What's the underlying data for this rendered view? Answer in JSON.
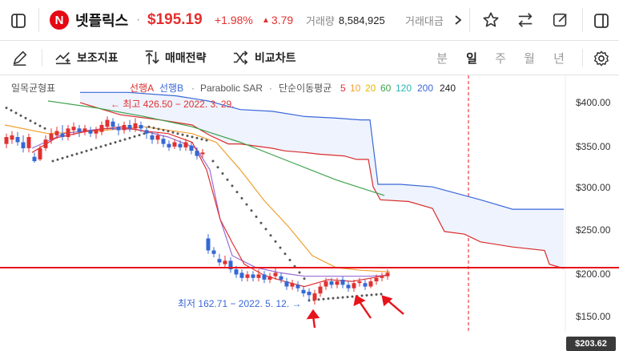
{
  "header": {
    "stock_name": "넷플릭스",
    "separator": "·",
    "price": "$195.19",
    "change_pct": "+1.98%",
    "change_abs": "3.79",
    "volume_label": "거래량",
    "volume_value": "8,584,925",
    "trade_amount_label": "거래대금",
    "colors": {
      "up": "#e52f2f",
      "brand": "#e50914"
    },
    "icons": [
      "sidebar-left-icon",
      "netflix-logo",
      "chevron-right-icon",
      "star-icon",
      "swap-icon",
      "edit-icon",
      "sidebar-right-icon"
    ]
  },
  "toolbar": {
    "auxiliary_indicator": "보조지표",
    "trading_strategy": "매매전략",
    "compare_chart": "비교차트",
    "periods": [
      "분",
      "일",
      "주",
      "월",
      "년"
    ],
    "active_period": "일"
  },
  "chart": {
    "indicator_title": "일목균형표",
    "legend_senkou_a": "선행A",
    "legend_senkou_b": "선행B",
    "legend_sar": "Parabolic SAR",
    "legend_ma_label": "단순이동평균",
    "legend_ma_periods": [
      "5",
      "10",
      "20",
      "60",
      "120",
      "200",
      "240"
    ],
    "legend_dot": "·",
    "high_annotation": "← 최고 426.50 − 2022. 3. 29.",
    "low_annotation": "최저 162.71 − 2022. 5. 12. →",
    "y_ticks": [
      "$400.00",
      "$350.00",
      "$300.00",
      "$250.00",
      "$200.00",
      "$150.00"
    ],
    "current_price_tag": "$203.62",
    "colors": {
      "up_candle": "#e03131",
      "down_candle": "#3568d4",
      "cloud": "#eef3fd",
      "ma5": "#e03131",
      "ma10": "#f0a030",
      "ma20": "#9a6ad6",
      "ma60": "#3fa34d",
      "ma120": "#2bb5b5",
      "sar": "#555555",
      "horizontal_line": "#e8141b"
    }
  }
}
